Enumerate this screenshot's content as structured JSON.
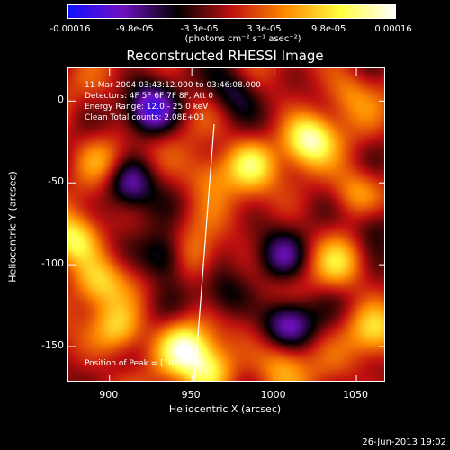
{
  "chart_data": {
    "type": "heatmap",
    "title": "Reconstructed RHESSI Image",
    "xlabel": "Heliocentric X (arcsec)",
    "ylabel": "Heliocentric Y (arcsec)",
    "xlim": [
      875,
      1068
    ],
    "ylim": [
      -172,
      20
    ],
    "x_ticks": [
      "900",
      "950",
      "1000",
      "1050"
    ],
    "y_ticks": [
      "0",
      "-50",
      "-100",
      "-150"
    ],
    "colorbar": {
      "ticks": [
        "-0.00016",
        "-9.8e-05",
        "-3.3e-05",
        "3.3e-05",
        "9.8e-05",
        "0.00016"
      ],
      "units": "(photons cm⁻² s⁻¹ asec⁻²)",
      "range": [
        -0.00016,
        0.00016
      ],
      "colors": [
        "#1010ff",
        "#7010c0",
        "#000000",
        "#c01010",
        "#ff8c00",
        "#ffff40",
        "#ffffff"
      ]
    },
    "annotations": {
      "time_range": "11-Mar-2004 03:43:12.000 to 03:46:08.000",
      "detectors": "Detectors: 4F 5F 6F 7F 8F, Att 0",
      "energy": "Energy Range: 12.0 - 25.0 keV",
      "clean": "Clean    Total counts: 2.08E+03",
      "peak": "Position of Peak = [1021,-23]"
    },
    "blobs": [
      {
        "x": 1021,
        "y": -23,
        "v": 1.0
      },
      {
        "x": 985,
        "y": -38,
        "v": 0.75
      },
      {
        "x": 1050,
        "y": -55,
        "v": 0.55
      },
      {
        "x": 878,
        "y": -85,
        "v": 0.85
      },
      {
        "x": 893,
        "y": -110,
        "v": 0.6
      },
      {
        "x": 950,
        "y": -95,
        "v": 0.55
      },
      {
        "x": 945,
        "y": -150,
        "v": 0.9
      },
      {
        "x": 905,
        "y": -140,
        "v": 0.7
      },
      {
        "x": 960,
        "y": -165,
        "v": 0.85
      },
      {
        "x": 1040,
        "y": -100,
        "v": 0.55
      },
      {
        "x": 1005,
        "y": -160,
        "v": 0.6
      },
      {
        "x": 1060,
        "y": -140,
        "v": 0.6
      },
      {
        "x": 895,
        "y": -35,
        "v": 0.45
      },
      {
        "x": 960,
        "y": -45,
        "v": 0.5
      },
      {
        "x": 1045,
        "y": 5,
        "v": 0.4
      },
      {
        "x": 925,
        "y": -5,
        "v": -0.9
      },
      {
        "x": 912,
        "y": -50,
        "v": -0.8
      },
      {
        "x": 935,
        "y": -95,
        "v": -0.85
      },
      {
        "x": 1005,
        "y": -95,
        "v": -0.6
      },
      {
        "x": 1008,
        "y": -135,
        "v": -0.8
      },
      {
        "x": 1060,
        "y": -75,
        "v": -0.5
      },
      {
        "x": 975,
        "y": 5,
        "v": -0.6
      },
      {
        "x": 970,
        "y": -120,
        "v": -0.4
      }
    ]
  },
  "timestamp": "26-Jun-2013 19:02"
}
